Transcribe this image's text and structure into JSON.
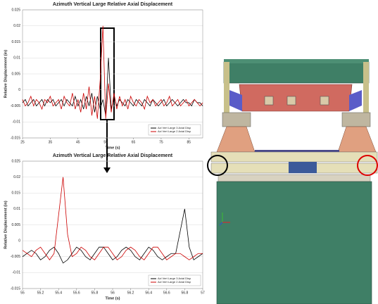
{
  "chart_data": [
    {
      "type": "line",
      "title": "Azimuth Vertical Large Relative Axial Displacement",
      "x_label": "Time (s)",
      "y_label": "Relative Displacement (in)",
      "x": [
        25,
        26,
        27,
        28,
        29,
        30,
        31,
        32,
        33,
        34,
        35,
        36,
        37,
        38,
        39,
        40,
        41,
        42,
        43,
        44,
        45,
        46,
        47,
        48,
        49,
        50,
        51,
        52,
        53,
        54,
        55,
        56,
        57,
        58,
        59,
        60,
        61,
        62,
        63,
        64,
        65,
        66,
        67,
        68,
        69,
        70,
        71,
        72,
        73,
        74,
        75,
        76,
        77,
        78,
        79,
        80,
        81,
        82,
        83,
        84,
        85,
        86,
        87,
        88,
        89,
        90
      ],
      "series": [
        {
          "name": "Azi Vert Large 3 Axial Disp",
          "color": "#000000",
          "values": [
            -0.004,
            -0.003,
            -0.005,
            -0.004,
            -0.003,
            -0.005,
            -0.004,
            -0.003,
            -0.005,
            -0.003,
            -0.004,
            -0.003,
            -0.005,
            -0.004,
            -0.003,
            -0.005,
            -0.003,
            -0.004,
            -0.005,
            -0.002,
            -0.005,
            -0.003,
            -0.006,
            -0.002,
            -0.005,
            -0.001,
            -0.007,
            -0.002,
            -0.006,
            -0.003,
            -0.008,
            0.01,
            -0.006,
            -0.002,
            -0.005,
            -0.003,
            -0.004,
            -0.005,
            -0.003,
            -0.004,
            -0.005,
            -0.003,
            -0.004,
            -0.005,
            -0.003,
            -0.004,
            -0.005,
            -0.003,
            -0.004,
            -0.005,
            -0.004,
            -0.003,
            -0.005,
            -0.004,
            -0.003,
            -0.004,
            -0.005,
            -0.004,
            -0.003,
            -0.004,
            -0.004,
            -0.005,
            -0.003,
            -0.004,
            -0.004,
            -0.005
          ]
        },
        {
          "name": "Azi Vert Large 2 Axial Disp",
          "color": "#cc0000",
          "values": [
            -0.003,
            -0.005,
            -0.004,
            -0.002,
            -0.005,
            -0.003,
            -0.004,
            -0.006,
            -0.003,
            -0.004,
            -0.002,
            -0.005,
            -0.004,
            -0.003,
            -0.006,
            -0.002,
            -0.004,
            -0.005,
            -0.001,
            -0.006,
            -0.003,
            -0.007,
            -0.001,
            -0.006,
            0.001,
            -0.008,
            -0.002,
            -0.009,
            0.003,
            0.02,
            -0.009,
            0.002,
            -0.007,
            -0.001,
            -0.006,
            -0.002,
            -0.005,
            -0.003,
            -0.006,
            -0.002,
            -0.004,
            -0.005,
            -0.003,
            -0.004,
            -0.006,
            -0.002,
            -0.004,
            -0.003,
            -0.005,
            -0.004,
            -0.003,
            -0.005,
            -0.004,
            -0.002,
            -0.005,
            -0.004,
            -0.003,
            -0.005,
            -0.004,
            -0.003,
            -0.005,
            -0.004,
            -0.003,
            -0.004,
            -0.005,
            -0.004
          ]
        }
      ],
      "xlim": [
        25,
        90
      ],
      "xticks": [
        25,
        35,
        45,
        55,
        65,
        75,
        85
      ],
      "ylim": [
        -0.015,
        0.025
      ],
      "yticks": [
        -0.015,
        -0.01,
        -0.005,
        0,
        0.005,
        0.01,
        0.015,
        0.02,
        0.025
      ],
      "grid": true,
      "legend": "lower right"
    },
    {
      "type": "line",
      "title": "Azimuth Vertical Large Relative Axial Displacement",
      "x_label": "Time (s)",
      "y_label": "Relative Displacement (in)",
      "x": [
        55,
        55.05,
        55.1,
        55.15,
        55.2,
        55.25,
        55.3,
        55.35,
        55.4,
        55.45,
        55.5,
        55.55,
        55.6,
        55.65,
        55.7,
        55.75,
        55.8,
        55.85,
        55.9,
        55.95,
        56,
        56.05,
        56.1,
        56.15,
        56.2,
        56.25,
        56.3,
        56.35,
        56.4,
        56.45,
        56.5,
        56.55,
        56.6,
        56.65,
        56.7,
        56.75,
        56.8,
        56.85,
        56.9,
        56.95,
        57
      ],
      "series": [
        {
          "name": "Azi Vert Large 3 Axial Disp",
          "color": "#000000",
          "values": [
            -0.005,
            -0.004,
            -0.003,
            -0.004,
            -0.006,
            -0.005,
            -0.003,
            -0.002,
            -0.004,
            -0.007,
            -0.006,
            -0.004,
            -0.002,
            -0.003,
            -0.005,
            -0.006,
            -0.004,
            -0.002,
            -0.002,
            -0.004,
            -0.006,
            -0.005,
            -0.003,
            -0.002,
            -0.003,
            -0.005,
            -0.006,
            -0.004,
            -0.002,
            -0.003,
            -0.005,
            -0.006,
            -0.005,
            -0.004,
            -0.004,
            0.003,
            0.01,
            -0.002,
            -0.006,
            -0.005,
            -0.004
          ]
        },
        {
          "name": "Azi Vert Large 2 Axial Disp",
          "color": "#cc0000",
          "values": [
            -0.003,
            -0.004,
            -0.005,
            -0.003,
            -0.002,
            -0.004,
            -0.006,
            -0.004,
            0.008,
            0.02,
            0.002,
            -0.005,
            -0.004,
            -0.002,
            -0.003,
            -0.005,
            -0.006,
            -0.004,
            -0.002,
            -0.002,
            -0.004,
            -0.006,
            -0.005,
            -0.003,
            -0.002,
            -0.003,
            -0.005,
            -0.006,
            -0.004,
            -0.002,
            -0.002,
            -0.004,
            -0.006,
            -0.005,
            -0.004,
            -0.004,
            -0.005,
            -0.006,
            -0.005,
            -0.004,
            -0.004
          ]
        }
      ],
      "xlim": [
        55,
        57
      ],
      "xticks": [
        55,
        55.2,
        55.4,
        55.6,
        55.8,
        56,
        56.2,
        56.4,
        56.6,
        56.8,
        57
      ],
      "ylim": [
        -0.015,
        0.025
      ],
      "yticks": [
        -0.015,
        -0.01,
        -0.005,
        0,
        0.005,
        0.01,
        0.015,
        0.02,
        0.025
      ],
      "grid": true,
      "legend": "lower right"
    }
  ]
}
